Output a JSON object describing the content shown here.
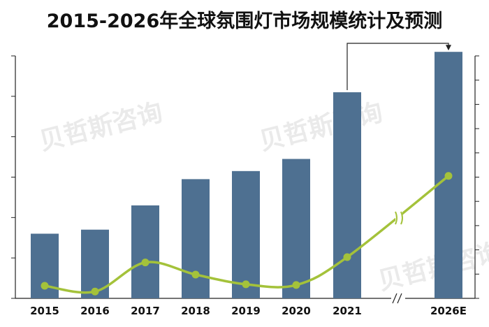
{
  "chart_data": {
    "type": "bar+line",
    "title": "2015-2026年全球氛围灯市场规模统计及预测",
    "categories": [
      "2015",
      "2016",
      "2017",
      "2018",
      "2019",
      "2020",
      "2021",
      "2026E"
    ],
    "series": [
      {
        "type": "bar",
        "values": [
          1.6,
          1.7,
          2.3,
          2.95,
          3.15,
          3.45,
          5.1,
          6.1
        ]
      },
      {
        "type": "line",
        "values": [
          0.52,
          0.28,
          1.48,
          0.98,
          0.58,
          0.55,
          1.7,
          5.05
        ]
      }
    ],
    "ylim": [
      0,
      6.0
    ],
    "y2lim": [
      0,
      10.0
    ],
    "axis_break_between": [
      "2021",
      "2026E"
    ],
    "grid": false,
    "colors": {
      "bar": "#4e7091",
      "line": "#a4c23a"
    }
  },
  "watermark": "贝哲斯咨询"
}
